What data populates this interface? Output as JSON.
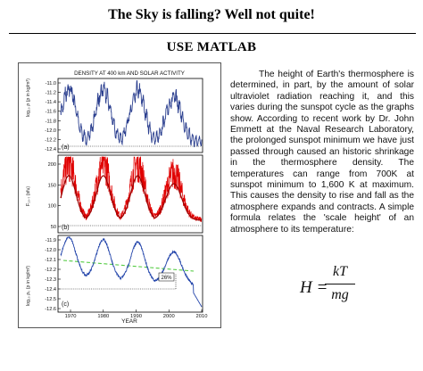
{
  "header": {
    "title": "The Sky is falling? Well not quite!",
    "subtitle": "USE MATLAB"
  },
  "figure": {
    "title": "DENSITY AT 400 km AND SOLAR ACTIVITY",
    "xlabel": "YEAR",
    "x_ticks": [
      "1970",
      "1980",
      "1990",
      "2000",
      "2010"
    ],
    "panel_a": {
      "tag": "(a)",
      "ylabel": "log₁₀ ρ (ρ in kg/m³)",
      "y_ticks": [
        "-11.0",
        "-11.2",
        "-11.4",
        "-11.6",
        "-11.8",
        "-12.0",
        "-12.2",
        "-12.4"
      ],
      "color": "#2b3f8f"
    },
    "panel_b": {
      "tag": "(b)",
      "ylabel": "F₁₀.₇ (sfu)",
      "y_ticks": [
        "200",
        "150",
        "100",
        "50"
      ],
      "color": "#e00000"
    },
    "panel_c": {
      "tag": "(c)",
      "ylabel": "log₁₀ ρ₀ (ρ in kg/m³)",
      "y_ticks": [
        "-11.9",
        "-12.0",
        "-12.1",
        "-12.2",
        "-12.3",
        "-12.4",
        "-12.5",
        "-12.6"
      ],
      "annotation": "26%",
      "color": "#2244aa",
      "trend_color": "#55cc44"
    }
  },
  "article": {
    "paragraph": "The height of Earth's thermosphere is determined, in part, by the amount of solar ultraviolet radiation reaching it, and this varies during the sunspot cycle as the graphs show. According to recent work by Dr. John Emmett at the Naval Research Laboratory, the prolonged sunspot minimum we have just passed through caused an historic shrinkage in the thermosphere density. The temperatures can range from 700K at sunspot minimum to 1,600 K at maximum. This causes the density to rise and fall as the atmosphere expands and contracts.  A simple formula relates the 'scale height' of an atmosphere to its temperature:"
  },
  "formula": {
    "lhs": "H =",
    "numerator": "kT",
    "denominator": "mg"
  }
}
